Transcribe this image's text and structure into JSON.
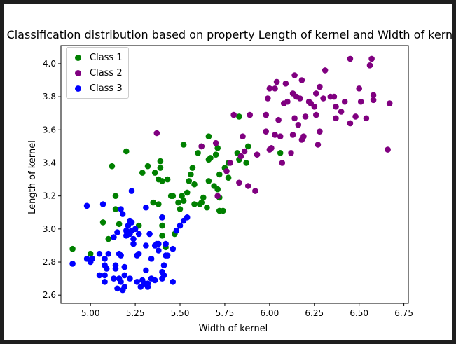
{
  "chart_data": {
    "type": "scatter",
    "title": "Classification distribution based on property Length of kernel and Width of kernel",
    "xlabel": "Width of kernel",
    "ylabel": "Length of kernel",
    "xlim": [
      4.835,
      6.775
    ],
    "ylim": [
      2.55,
      4.11
    ],
    "xticks": [
      "5.00",
      "5.25",
      "5.50",
      "5.75",
      "6.00",
      "6.25",
      "6.50",
      "6.75"
    ],
    "yticks": [
      "2.6",
      "2.8",
      "3.0",
      "3.2",
      "3.4",
      "3.6",
      "3.8",
      "4.0"
    ],
    "grid": false,
    "legend_position": "upper-left",
    "series": [
      {
        "name": "Class 1",
        "color": "#008000",
        "points": [
          [
            4.9,
            2.88
          ],
          [
            5.0,
            2.85
          ],
          [
            5.07,
            3.04
          ],
          [
            5.1,
            2.94
          ],
          [
            5.12,
            3.38
          ],
          [
            5.14,
            3.12
          ],
          [
            5.14,
            3.2
          ],
          [
            5.16,
            3.03
          ],
          [
            5.2,
            3.47
          ],
          [
            5.27,
            3.02
          ],
          [
            5.29,
            3.34
          ],
          [
            5.32,
            3.38
          ],
          [
            5.35,
            3.16
          ],
          [
            5.36,
            3.34
          ],
          [
            5.38,
            3.15
          ],
          [
            5.38,
            3.3
          ],
          [
            5.39,
            3.37
          ],
          [
            5.39,
            3.41
          ],
          [
            5.4,
            3.29
          ],
          [
            5.4,
            3.07
          ],
          [
            5.4,
            3.02
          ],
          [
            5.4,
            2.96
          ],
          [
            5.42,
            2.89
          ],
          [
            5.43,
            3.3
          ],
          [
            5.45,
            3.2
          ],
          [
            5.46,
            3.2
          ],
          [
            5.47,
            2.97
          ],
          [
            5.49,
            3.16
          ],
          [
            5.5,
            3.12
          ],
          [
            5.51,
            3.2
          ],
          [
            5.52,
            3.17
          ],
          [
            5.52,
            3.51
          ],
          [
            5.54,
            3.22
          ],
          [
            5.55,
            3.29
          ],
          [
            5.56,
            3.33
          ],
          [
            5.57,
            3.37
          ],
          [
            5.58,
            3.27
          ],
          [
            5.58,
            3.15
          ],
          [
            5.6,
            3.46
          ],
          [
            5.61,
            3.15
          ],
          [
            5.62,
            3.16
          ],
          [
            5.62,
            3.5
          ],
          [
            5.63,
            3.19
          ],
          [
            5.65,
            3.13
          ],
          [
            5.66,
            3.29
          ],
          [
            5.66,
            3.42
          ],
          [
            5.66,
            3.56
          ],
          [
            5.67,
            3.43
          ],
          [
            5.69,
            3.26
          ],
          [
            5.7,
            3.45
          ],
          [
            5.71,
            3.49
          ],
          [
            5.71,
            3.24
          ],
          [
            5.72,
            3.19
          ],
          [
            5.72,
            3.33
          ],
          [
            5.72,
            3.11
          ],
          [
            5.74,
            3.11
          ],
          [
            5.75,
            3.37
          ],
          [
            5.77,
            3.31
          ],
          [
            5.77,
            3.4
          ],
          [
            5.82,
            3.46
          ],
          [
            5.83,
            3.68
          ],
          [
            5.83,
            3.42
          ],
          [
            5.88,
            3.5
          ],
          [
            5.87,
            3.4
          ],
          [
            6.06,
            3.46
          ]
        ]
      },
      {
        "name": "Class 2",
        "color": "#800080",
        "points": [
          [
            5.37,
            3.58
          ],
          [
            5.62,
            3.5
          ],
          [
            5.7,
            3.52
          ],
          [
            5.71,
            3.2
          ],
          [
            5.76,
            3.35
          ],
          [
            5.78,
            3.4
          ],
          [
            5.8,
            3.69
          ],
          [
            5.83,
            3.28
          ],
          [
            5.84,
            3.44
          ],
          [
            5.85,
            3.56
          ],
          [
            5.86,
            3.47
          ],
          [
            5.88,
            3.26
          ],
          [
            5.89,
            3.69
          ],
          [
            5.92,
            3.23
          ],
          [
            5.93,
            3.45
          ],
          [
            5.98,
            3.59
          ],
          [
            5.98,
            3.69
          ],
          [
            5.99,
            3.79
          ],
          [
            6.0,
            3.48
          ],
          [
            6.0,
            3.85
          ],
          [
            6.01,
            3.49
          ],
          [
            6.03,
            3.57
          ],
          [
            6.03,
            3.85
          ],
          [
            6.04,
            3.89
          ],
          [
            6.05,
            3.66
          ],
          [
            6.06,
            3.56
          ],
          [
            6.07,
            3.4
          ],
          [
            6.08,
            3.76
          ],
          [
            6.09,
            3.88
          ],
          [
            6.1,
            3.77
          ],
          [
            6.12,
            3.46
          ],
          [
            6.13,
            3.57
          ],
          [
            6.13,
            3.82
          ],
          [
            6.14,
            3.93
          ],
          [
            6.14,
            3.67
          ],
          [
            6.15,
            3.8
          ],
          [
            6.16,
            3.63
          ],
          [
            6.17,
            3.79
          ],
          [
            6.18,
            3.9
          ],
          [
            6.18,
            3.54
          ],
          [
            6.19,
            3.56
          ],
          [
            6.2,
            3.68
          ],
          [
            6.22,
            3.77
          ],
          [
            6.23,
            3.76
          ],
          [
            6.25,
            3.74
          ],
          [
            6.26,
            3.82
          ],
          [
            6.26,
            3.69
          ],
          [
            6.27,
            3.51
          ],
          [
            6.28,
            3.59
          ],
          [
            6.28,
            3.86
          ],
          [
            6.3,
            3.79
          ],
          [
            6.31,
            3.96
          ],
          [
            6.34,
            3.8
          ],
          [
            6.36,
            3.8
          ],
          [
            6.37,
            3.67
          ],
          [
            6.37,
            3.74
          ],
          [
            6.4,
            3.71
          ],
          [
            6.42,
            3.77
          ],
          [
            6.45,
            3.64
          ],
          [
            6.45,
            3.64
          ],
          [
            6.45,
            4.03
          ],
          [
            6.48,
            3.68
          ],
          [
            6.5,
            3.85
          ],
          [
            6.51,
            3.77
          ],
          [
            6.54,
            3.67
          ],
          [
            6.56,
            3.99
          ],
          [
            6.57,
            4.03
          ],
          [
            6.58,
            3.81
          ],
          [
            6.58,
            3.78
          ],
          [
            6.66,
            3.48
          ],
          [
            6.67,
            3.76
          ]
        ]
      },
      {
        "name": "Class 3",
        "color": "#0000ff",
        "points": [
          [
            4.9,
            2.79
          ],
          [
            4.98,
            3.14
          ],
          [
            4.98,
            2.82
          ],
          [
            5.0,
            2.8
          ],
          [
            5.01,
            2.82
          ],
          [
            5.05,
            2.72
          ],
          [
            5.05,
            2.85
          ],
          [
            5.07,
            3.15
          ],
          [
            5.08,
            2.82
          ],
          [
            5.08,
            2.78
          ],
          [
            5.08,
            2.72
          ],
          [
            5.08,
            2.68
          ],
          [
            5.09,
            2.76
          ],
          [
            5.1,
            2.85
          ],
          [
            5.13,
            2.7
          ],
          [
            5.13,
            2.95
          ],
          [
            5.14,
            2.78
          ],
          [
            5.14,
            2.76
          ],
          [
            5.15,
            2.98
          ],
          [
            5.15,
            2.64
          ],
          [
            5.16,
            2.7
          ],
          [
            5.16,
            2.85
          ],
          [
            5.17,
            3.12
          ],
          [
            5.17,
            2.84
          ],
          [
            5.17,
            2.68
          ],
          [
            5.18,
            3.09
          ],
          [
            5.18,
            2.63
          ],
          [
            5.19,
            2.77
          ],
          [
            5.19,
            2.72
          ],
          [
            5.19,
            2.65
          ],
          [
            5.2,
            2.96
          ],
          [
            5.2,
            2.99
          ],
          [
            5.21,
            3.02
          ],
          [
            5.22,
            2.97
          ],
          [
            5.22,
            3.05
          ],
          [
            5.22,
            2.7
          ],
          [
            5.23,
            3.04
          ],
          [
            5.23,
            2.99
          ],
          [
            5.23,
            3.23
          ],
          [
            5.24,
            2.94
          ],
          [
            5.24,
            2.91
          ],
          [
            5.25,
            3.0
          ],
          [
            5.26,
            2.68
          ],
          [
            5.26,
            2.84
          ],
          [
            5.27,
            2.85
          ],
          [
            5.27,
            2.97
          ],
          [
            5.28,
            2.65
          ],
          [
            5.29,
            2.69
          ],
          [
            5.3,
            2.67
          ],
          [
            5.31,
            3.13
          ],
          [
            5.31,
            2.9
          ],
          [
            5.31,
            2.75
          ],
          [
            5.32,
            2.67
          ],
          [
            5.32,
            2.65
          ],
          [
            5.33,
            2.97
          ],
          [
            5.34,
            2.82
          ],
          [
            5.34,
            2.7
          ],
          [
            5.36,
            2.9
          ],
          [
            5.36,
            2.69
          ],
          [
            5.37,
            2.91
          ],
          [
            5.38,
            2.91
          ],
          [
            5.38,
            2.87
          ],
          [
            5.4,
            3.07
          ],
          [
            5.4,
            2.74
          ],
          [
            5.4,
            2.7
          ],
          [
            5.41,
            2.78
          ],
          [
            5.41,
            2.72
          ],
          [
            5.42,
            2.84
          ],
          [
            5.42,
            2.91
          ],
          [
            5.43,
            2.84
          ],
          [
            5.46,
            2.68
          ],
          [
            5.46,
            2.88
          ],
          [
            5.48,
            2.99
          ],
          [
            5.5,
            3.02
          ],
          [
            5.52,
            3.05
          ],
          [
            5.54,
            3.07
          ]
        ]
      }
    ]
  }
}
